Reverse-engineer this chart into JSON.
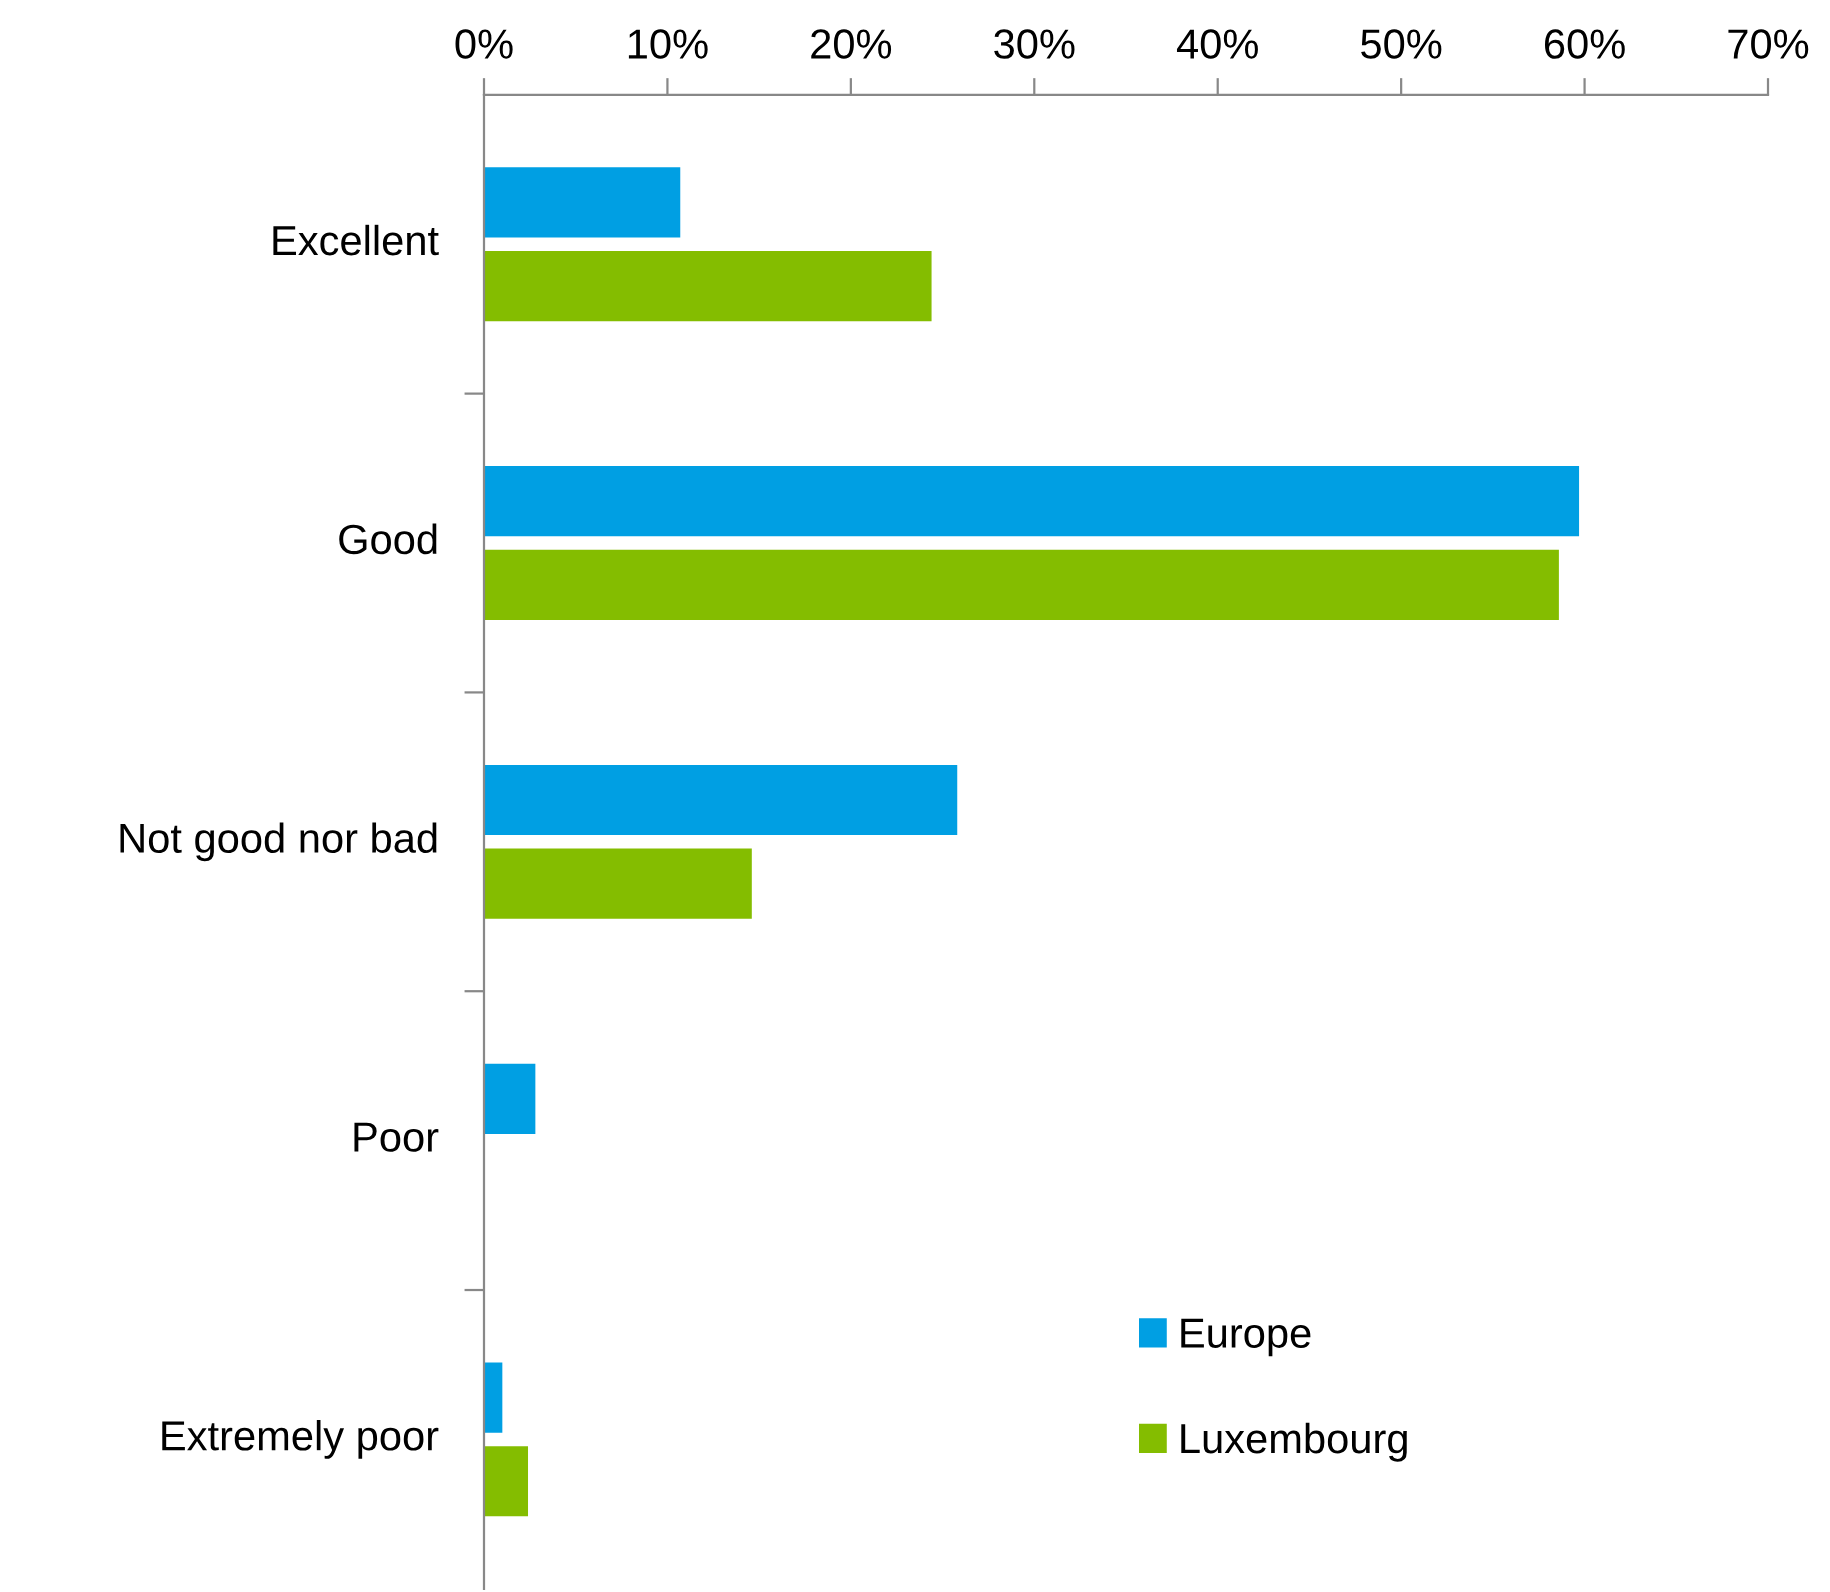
{
  "chart_data": {
    "type": "bar",
    "orientation": "horizontal",
    "categories": [
      "Excellent",
      "Good",
      "Not good nor bad",
      "Poor",
      "Extremely poor"
    ],
    "series": [
      {
        "name": "Europe",
        "color": "#009fe3",
        "values": [
          10.7,
          59.7,
          25.8,
          2.8,
          1.0
        ]
      },
      {
        "name": "Luxembourg",
        "color": "#84bd00",
        "values": [
          24.4,
          58.6,
          14.6,
          0,
          2.4
        ]
      }
    ],
    "xlim": [
      0,
      70
    ],
    "xticks": [
      {
        "value": 0,
        "label": "0%"
      },
      {
        "value": 10,
        "label": "10%"
      },
      {
        "value": 20,
        "label": "20%"
      },
      {
        "value": 30,
        "label": "30%"
      },
      {
        "value": 40,
        "label": "40%"
      },
      {
        "value": 50,
        "label": "50%"
      },
      {
        "value": 60,
        "label": "60%"
      },
      {
        "value": 70,
        "label": "70%"
      }
    ],
    "grid": false,
    "legend": "bottom right"
  }
}
